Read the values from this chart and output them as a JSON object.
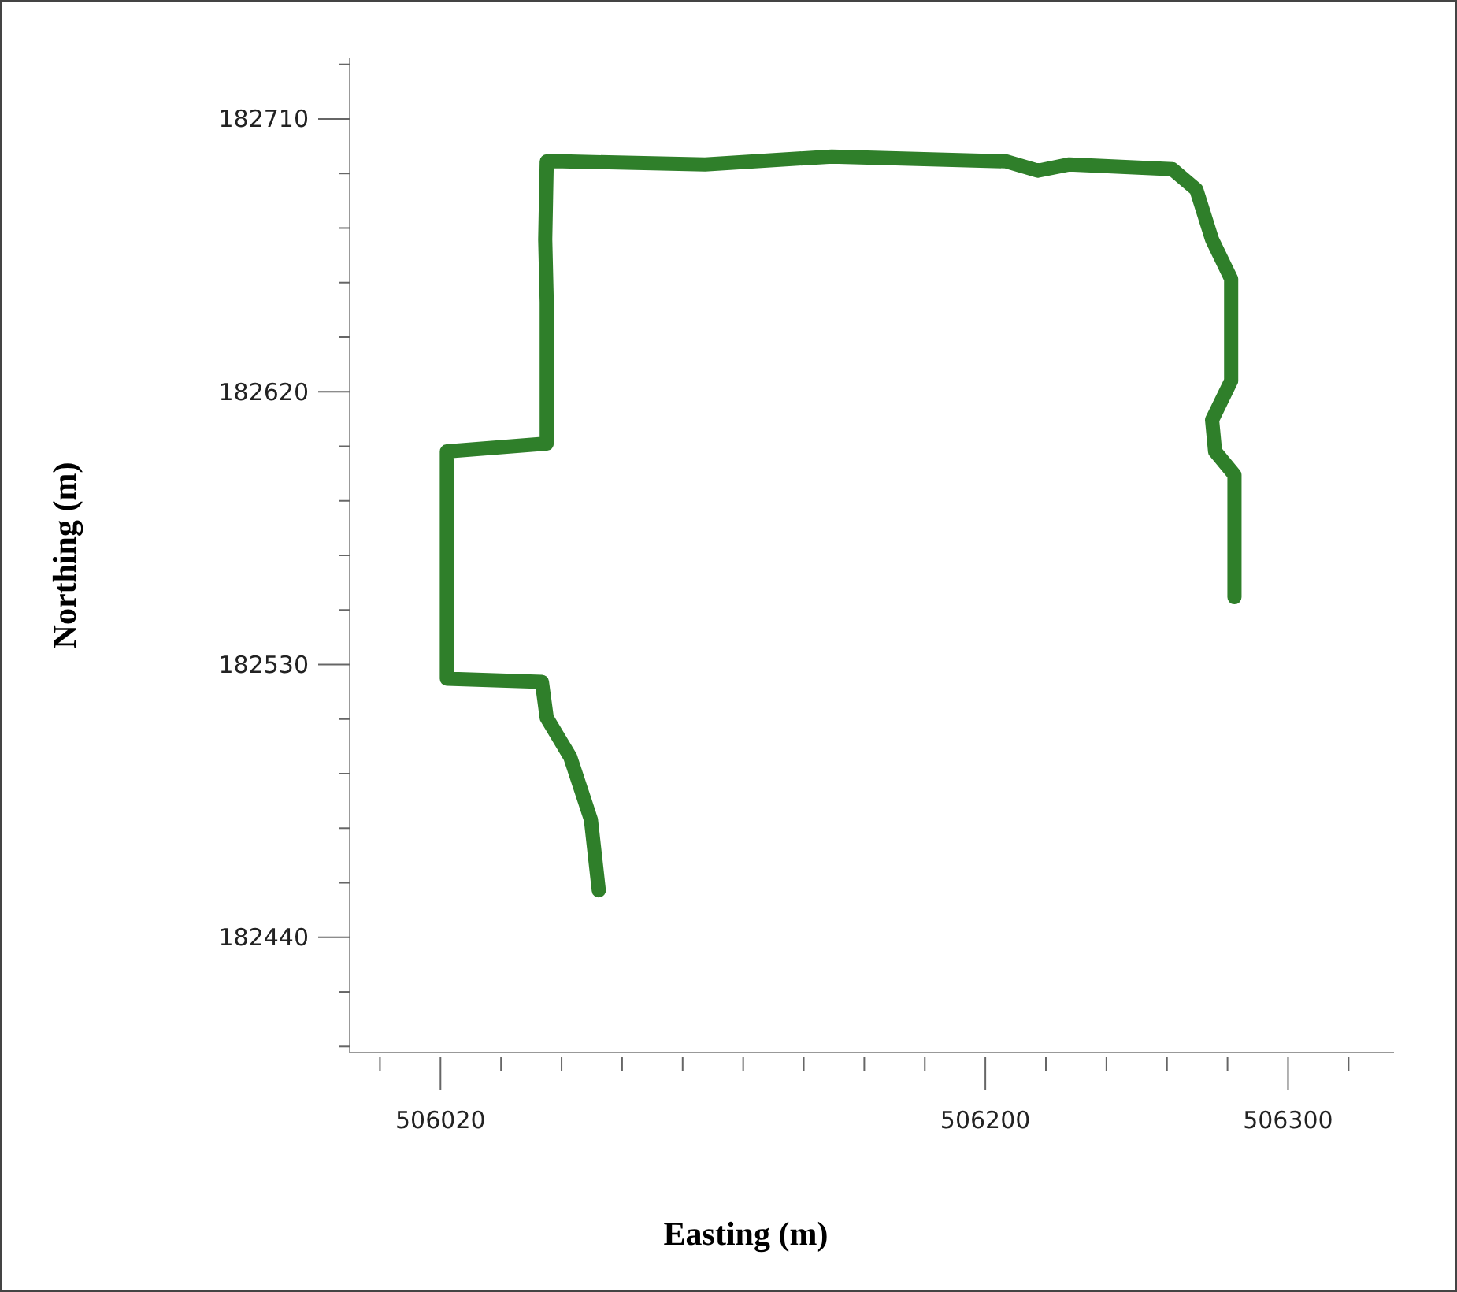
{
  "chart_data": {
    "type": "line",
    "xlabel": "Easting (m)",
    "ylabel": "Northing (m)",
    "x": [
      506072.3,
      506069.7,
      506062.9,
      506055.1,
      506053.5,
      506022.1,
      506022.1,
      506055.1,
      506055.1,
      506054.6,
      506055.1,
      506060.3,
      506107.4,
      506149.3,
      506206.9,
      506217.3,
      506227.8,
      506261.8,
      506269.7,
      506274.9,
      506281.2,
      506281.2,
      506274.9,
      506275.9,
      506282.3,
      506282.3
    ],
    "series": [
      {
        "color": "#2f7f2a",
        "values": [
          182455.5,
          182478.8,
          182499.4,
          182512.4,
          182524.3,
          182525.3,
          182600.3,
          182602.9,
          182649.5,
          182670.2,
          182696.0,
          182696.0,
          182695.0,
          182697.6,
          182696.0,
          182692.9,
          182695.0,
          182693.4,
          182686.7,
          182670.2,
          182657.2,
          182623.6,
          182610.7,
          182600.3,
          182592.6,
          182552.2
        ]
      }
    ],
    "xlim": [
      505990,
      506335
    ],
    "xticks": [
      506020,
      506200,
      506300,
      {
        "value": 506000,
        "label": null
      },
      {
        "value": 506040,
        "label": null
      },
      {
        "value": 506060,
        "label": null
      },
      {
        "value": 506080,
        "label": null
      },
      {
        "value": 506100,
        "label": null
      },
      {
        "value": 506120,
        "label": null
      },
      {
        "value": 506140,
        "label": null
      },
      {
        "value": 506160,
        "label": null
      },
      {
        "value": 506180,
        "label": null
      },
      {
        "value": 506220,
        "label": null
      },
      {
        "value": 506240,
        "label": null
      },
      {
        "value": 506260,
        "label": null
      },
      {
        "value": 506280,
        "label": null
      },
      {
        "value": 506320,
        "label": null
      }
    ],
    "ylim": [
      182402,
      182730
    ],
    "yticks": [
      182440,
      182530,
      182620,
      182710,
      {
        "value": 182404,
        "label": null
      },
      {
        "value": 182422,
        "label": null
      },
      {
        "value": 182458,
        "label": null
      },
      {
        "value": 182476,
        "label": null
      },
      {
        "value": 182494,
        "label": null
      },
      {
        "value": 182512,
        "label": null
      },
      {
        "value": 182548,
        "label": null
      },
      {
        "value": 182566,
        "label": null
      },
      {
        "value": 182584,
        "label": null
      },
      {
        "value": 182602,
        "label": null
      },
      {
        "value": 182638,
        "label": null
      },
      {
        "value": 182656,
        "label": null
      },
      {
        "value": 182674,
        "label": null
      },
      {
        "value": 182692,
        "label": null
      },
      {
        "value": 182728,
        "label": null
      }
    ],
    "line_style": "solid",
    "grid": false
  }
}
